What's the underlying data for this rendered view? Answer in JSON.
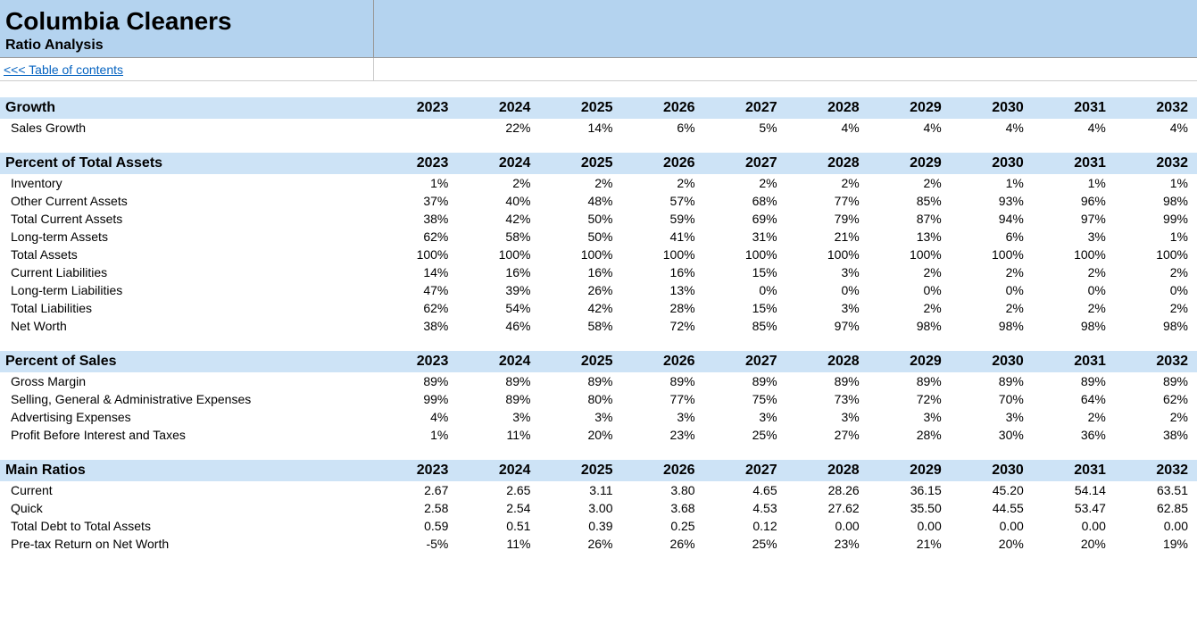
{
  "header": {
    "company": "Columbia Cleaners",
    "subtitle": "Ratio Analysis",
    "toc_link": "<<< Table of contents"
  },
  "colors": {
    "header_bg": "#b4d3ef",
    "section_bg": "#cde3f6",
    "link": "#0563c1",
    "border": "#999999"
  },
  "years": [
    "2023",
    "2024",
    "2025",
    "2026",
    "2027",
    "2028",
    "2029",
    "2030",
    "2031",
    "2032"
  ],
  "sections": [
    {
      "title": "Growth",
      "rows": [
        {
          "label": "Sales Growth",
          "values": [
            "",
            "22%",
            "14%",
            "6%",
            "5%",
            "4%",
            "4%",
            "4%",
            "4%",
            "4%"
          ]
        }
      ]
    },
    {
      "title": "Percent of Total Assets",
      "rows": [
        {
          "label": "Inventory",
          "values": [
            "1%",
            "2%",
            "2%",
            "2%",
            "2%",
            "2%",
            "2%",
            "1%",
            "1%",
            "1%"
          ]
        },
        {
          "label": "Other Current Assets",
          "values": [
            "37%",
            "40%",
            "48%",
            "57%",
            "68%",
            "77%",
            "85%",
            "93%",
            "96%",
            "98%"
          ]
        },
        {
          "label": "Total Current Assets",
          "values": [
            "38%",
            "42%",
            "50%",
            "59%",
            "69%",
            "79%",
            "87%",
            "94%",
            "97%",
            "99%"
          ]
        },
        {
          "label": "Long-term Assets",
          "values": [
            "62%",
            "58%",
            "50%",
            "41%",
            "31%",
            "21%",
            "13%",
            "6%",
            "3%",
            "1%"
          ]
        },
        {
          "label": "Total Assets",
          "values": [
            "100%",
            "100%",
            "100%",
            "100%",
            "100%",
            "100%",
            "100%",
            "100%",
            "100%",
            "100%"
          ]
        },
        {
          "label": "Current Liabilities",
          "values": [
            "14%",
            "16%",
            "16%",
            "16%",
            "15%",
            "3%",
            "2%",
            "2%",
            "2%",
            "2%"
          ]
        },
        {
          "label": "Long-term Liabilities",
          "values": [
            "47%",
            "39%",
            "26%",
            "13%",
            "0%",
            "0%",
            "0%",
            "0%",
            "0%",
            "0%"
          ]
        },
        {
          "label": "Total Liabilities",
          "values": [
            "62%",
            "54%",
            "42%",
            "28%",
            "15%",
            "3%",
            "2%",
            "2%",
            "2%",
            "2%"
          ]
        },
        {
          "label": "Net Worth",
          "values": [
            "38%",
            "46%",
            "58%",
            "72%",
            "85%",
            "97%",
            "98%",
            "98%",
            "98%",
            "98%"
          ]
        }
      ]
    },
    {
      "title": "Percent of Sales",
      "rows": [
        {
          "label": "Gross Margin",
          "values": [
            "89%",
            "89%",
            "89%",
            "89%",
            "89%",
            "89%",
            "89%",
            "89%",
            "89%",
            "89%"
          ]
        },
        {
          "label": "Selling, General & Administrative Expenses",
          "values": [
            "99%",
            "89%",
            "80%",
            "77%",
            "75%",
            "73%",
            "72%",
            "70%",
            "64%",
            "62%"
          ]
        },
        {
          "label": "Advertising Expenses",
          "values": [
            "4%",
            "3%",
            "3%",
            "3%",
            "3%",
            "3%",
            "3%",
            "3%",
            "2%",
            "2%"
          ]
        },
        {
          "label": "Profit Before Interest and Taxes",
          "values": [
            "1%",
            "11%",
            "20%",
            "23%",
            "25%",
            "27%",
            "28%",
            "30%",
            "36%",
            "38%"
          ]
        }
      ]
    },
    {
      "title": "Main Ratios",
      "rows": [
        {
          "label": "Current",
          "values": [
            "2.67",
            "2.65",
            "3.11",
            "3.80",
            "4.65",
            "28.26",
            "36.15",
            "45.20",
            "54.14",
            "63.51"
          ]
        },
        {
          "label": "Quick",
          "values": [
            "2.58",
            "2.54",
            "3.00",
            "3.68",
            "4.53",
            "27.62",
            "35.50",
            "44.55",
            "53.47",
            "62.85"
          ]
        },
        {
          "label": "Total Debt to Total Assets",
          "values": [
            "0.59",
            "0.51",
            "0.39",
            "0.25",
            "0.12",
            "0.00",
            "0.00",
            "0.00",
            "0.00",
            "0.00"
          ]
        },
        {
          "label": "Pre-tax Return on Net Worth",
          "values": [
            "-5%",
            "11%",
            "26%",
            "26%",
            "25%",
            "23%",
            "21%",
            "20%",
            "20%",
            "19%"
          ]
        }
      ]
    }
  ]
}
